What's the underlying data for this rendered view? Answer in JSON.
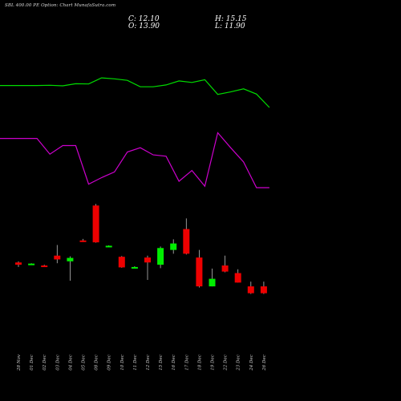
{
  "header": {
    "title": "SBL 400.00 PE Option: Chart MunafaSutra.com",
    "close": "C: 12.10",
    "open": "O: 13.90",
    "high": "H: 15.15",
    "low": "L: 11.90"
  },
  "colors": {
    "background": "#000000",
    "up": "#00ee00",
    "down": "#ee0000",
    "line_green": "#00dd00",
    "line_purple": "#cc00cc",
    "wick": "#bbbbbb"
  },
  "chart_data": {
    "type": "candlestick",
    "dates": [
      "28 Nov",
      "01 Dec",
      "02 Dec",
      "03 Dec",
      "04 Dec",
      "05 Dec",
      "08 Dec",
      "09 Dec",
      "10 Dec",
      "11 Dec",
      "12 Dec",
      "15 Dec",
      "16 Dec",
      "17 Dec",
      "18 Dec",
      "19 Dec",
      "22 Dec",
      "23 Dec",
      "24 Dec",
      "26 Dec"
    ],
    "candles": [
      {
        "o": 20.2,
        "h": 20.5,
        "l": 19.0,
        "c": 19.6
      },
      {
        "o": 19.8,
        "h": 20.0,
        "l": 19.6,
        "c": 19.9
      },
      {
        "o": 19.4,
        "h": 19.6,
        "l": 19.1,
        "c": 19.3
      },
      {
        "o": 22.0,
        "h": 24.8,
        "l": 20.0,
        "c": 21.0
      },
      {
        "o": 20.5,
        "h": 21.8,
        "l": 15.4,
        "c": 21.4
      },
      {
        "o": 26.0,
        "h": 26.4,
        "l": 25.6,
        "c": 25.7
      },
      {
        "o": 35.2,
        "h": 35.6,
        "l": 25.4,
        "c": 25.5
      },
      {
        "o": 24.5,
        "h": 24.7,
        "l": 24.3,
        "c": 24.6
      },
      {
        "o": 21.7,
        "h": 21.9,
        "l": 18.8,
        "c": 18.9
      },
      {
        "o": 19.0,
        "h": 19.2,
        "l": 18.8,
        "c": 19.0
      },
      {
        "o": 21.5,
        "h": 22.0,
        "l": 15.6,
        "c": 20.2
      },
      {
        "o": 19.6,
        "h": 24.4,
        "l": 18.7,
        "c": 24.0
      },
      {
        "o": 23.5,
        "h": 26.3,
        "l": 22.5,
        "c": 25.2
      },
      {
        "o": 29.0,
        "h": 31.8,
        "l": 22.3,
        "c": 22.5
      },
      {
        "o": 21.5,
        "h": 23.5,
        "l": 13.6,
        "c": 13.9
      },
      {
        "o": 13.9,
        "h": 18.6,
        "l": 13.9,
        "c": 15.9
      },
      {
        "o": 19.4,
        "h": 22.0,
        "l": 17.6,
        "c": 17.8
      },
      {
        "o": 17.4,
        "h": 18.4,
        "l": 14.9,
        "c": 14.9
      },
      {
        "o": 13.9,
        "h": 15.15,
        "l": 11.9,
        "c": 12.1
      },
      {
        "o": 13.9,
        "h": 15.15,
        "l": 11.9,
        "c": 12.1
      }
    ],
    "green_line": [
      72,
      72,
      73,
      71,
      78,
      77,
      97,
      94,
      89,
      68,
      68,
      74,
      87,
      82,
      91,
      43,
      51,
      61,
      44,
      0
    ],
    "purple_line": [
      69,
      69,
      47,
      59,
      59,
      5,
      14,
      22,
      50,
      56,
      46,
      44,
      9,
      24,
      2,
      77,
      56,
      36,
      0,
      0
    ],
    "ylim": [
      8,
      38
    ]
  }
}
